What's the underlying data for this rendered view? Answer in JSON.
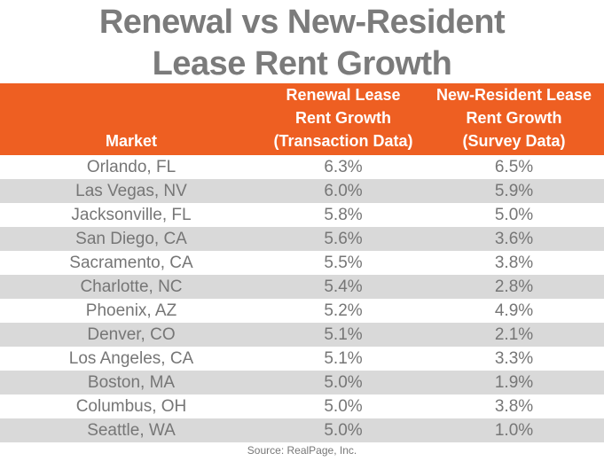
{
  "title": "Renewal vs New-Resident\nLease Rent Growth",
  "source": "Source: RealPage, Inc.",
  "colors": {
    "header_bg": "#ee5f22",
    "stripe": "#d9d9d9",
    "text": "#767676"
  },
  "chart_data": {
    "type": "table",
    "title": "Renewal vs New-Resident Lease Rent Growth",
    "columns": [
      "Market",
      "Renewal Lease\nRent Growth\n(Transaction Data)",
      "New-Resident Lease\nRent Growth\n(Survey Data)"
    ],
    "rows": [
      [
        "Orlando, FL",
        "6.3%",
        "6.5%"
      ],
      [
        "Las Vegas, NV",
        "6.0%",
        "5.9%"
      ],
      [
        "Jacksonville, FL",
        "5.8%",
        "5.0%"
      ],
      [
        "San Diego, CA",
        "5.6%",
        "3.6%"
      ],
      [
        "Sacramento, CA",
        "5.5%",
        "3.8%"
      ],
      [
        "Charlotte, NC",
        "5.4%",
        "2.8%"
      ],
      [
        "Phoenix, AZ",
        "5.2%",
        "4.9%"
      ],
      [
        "Denver, CO",
        "5.1%",
        "2.1%"
      ],
      [
        "Los Angeles, CA",
        "5.1%",
        "3.3%"
      ],
      [
        "Boston, MA",
        "5.0%",
        "1.9%"
      ],
      [
        "Columbus, OH",
        "5.0%",
        "3.8%"
      ],
      [
        "Seattle, WA",
        "5.0%",
        "1.0%"
      ]
    ]
  }
}
